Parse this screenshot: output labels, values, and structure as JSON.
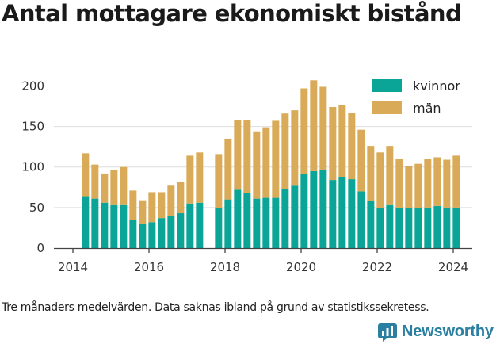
{
  "title": "Antal mottagare ekonomiskt bistånd",
  "caption": "Tre månaders medelvärden. Data saknas ibland på grund av statistikssekretess.",
  "brand": {
    "name": "Newsworthy",
    "icon": "newsworthy-logo-icon",
    "color": "#2b7fa0"
  },
  "colors": {
    "kvinnor": "#0aa596",
    "man": "#d9aa57",
    "grid": "#dddddd",
    "axis": "#444444"
  },
  "chart_data": {
    "type": "bar",
    "stacked": true,
    "title": "Antal mottagare ekonomiskt bistånd",
    "xlabel": "",
    "ylabel": "",
    "ylim": [
      0,
      220
    ],
    "xlim": [
      2013.5,
      2024.5
    ],
    "yticks": [
      0,
      50,
      100,
      150,
      200
    ],
    "xticks": [
      2014,
      2016,
      2018,
      2020,
      2022,
      2024
    ],
    "grid": true,
    "legend_position": "top-right",
    "x": [
      2014.33,
      2014.58,
      2014.83,
      2015.08,
      2015.33,
      2015.58,
      2015.83,
      2016.08,
      2016.33,
      2016.58,
      2016.83,
      2017.08,
      2017.33,
      2017.83,
      2018.08,
      2018.33,
      2018.58,
      2018.83,
      2019.08,
      2019.33,
      2019.58,
      2019.83,
      2020.08,
      2020.33,
      2020.58,
      2020.83,
      2021.08,
      2021.33,
      2021.58,
      2021.83,
      2022.08,
      2022.33,
      2022.58,
      2022.83,
      2023.08,
      2023.33,
      2023.58,
      2023.83,
      2024.08
    ],
    "series": [
      {
        "name": "kvinnor",
        "values": [
          64,
          61,
          56,
          54,
          54,
          35,
          30,
          32,
          37,
          40,
          43,
          55,
          56,
          49,
          60,
          72,
          68,
          61,
          62,
          62,
          73,
          77,
          91,
          95,
          97,
          84,
          88,
          85,
          70,
          58,
          49,
          54,
          50,
          49,
          49,
          50,
          52,
          50,
          50
        ]
      },
      {
        "name": "män",
        "values": [
          53,
          42,
          36,
          42,
          46,
          36,
          29,
          37,
          32,
          37,
          39,
          59,
          62,
          67,
          75,
          86,
          90,
          83,
          87,
          95,
          93,
          93,
          106,
          112,
          102,
          90,
          89,
          82,
          76,
          68,
          69,
          72,
          60,
          52,
          55,
          60,
          60,
          59,
          64
        ]
      }
    ]
  }
}
